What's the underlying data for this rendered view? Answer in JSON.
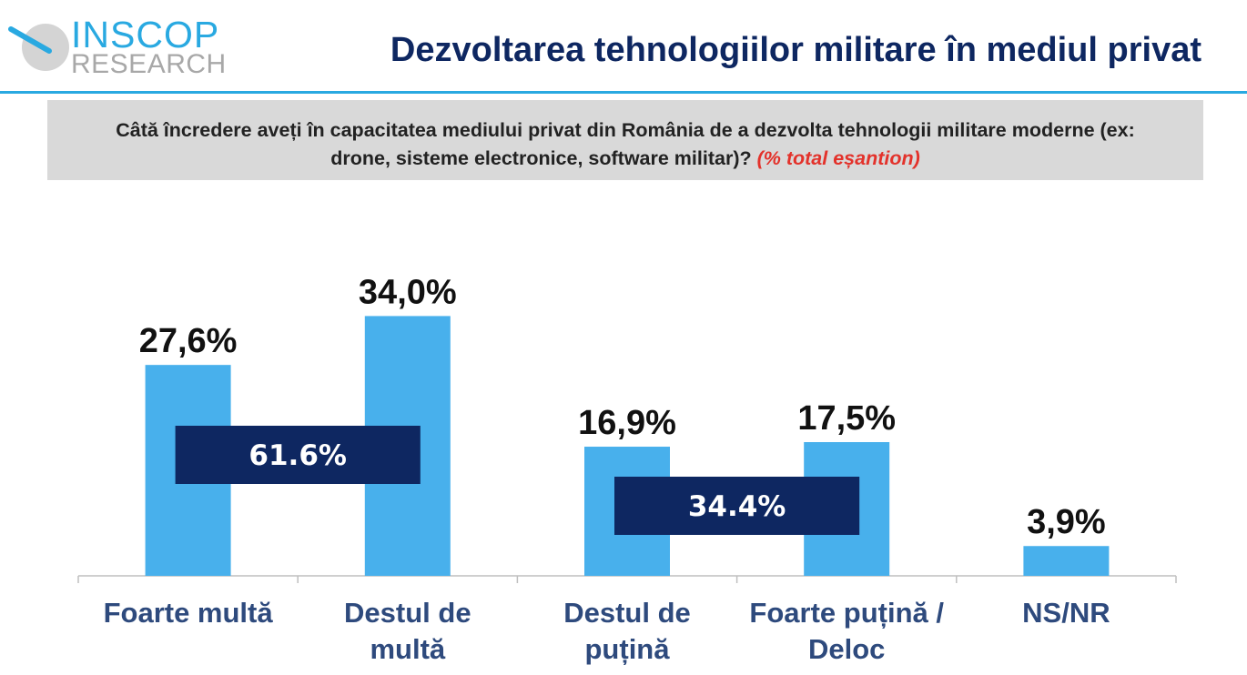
{
  "brand": {
    "name_top": "INSCOP",
    "name_bottom": "RESEARCH",
    "logo_icon": "magnifier-icon",
    "accent_color": "#29a9e1",
    "navy_color": "#0e2761"
  },
  "title": "Dezvoltarea tehnologiilor militare în mediul privat",
  "question": {
    "text": "Câtă încredere aveți în capacitatea mediului privat din România de a dezvolta tehnologii militare moderne (ex: drone, sisteme electronice, software militar)?",
    "note": "(% total eșantion)"
  },
  "chart_data": {
    "type": "bar",
    "categories": [
      [
        "Foarte multă"
      ],
      [
        "Destul de",
        "multă"
      ],
      [
        "Destul de",
        "puțină"
      ],
      [
        "Foarte puțină /",
        "Deloc"
      ],
      [
        "NS/NR"
      ]
    ],
    "values": [
      27.6,
      34.0,
      16.9,
      17.5,
      3.9
    ],
    "value_labels": [
      "27,6%",
      "34,0%",
      "16,9%",
      "17,5%",
      "3,9%"
    ],
    "ylim": [
      0,
      40
    ],
    "bar_color": "#48b0ec",
    "aggregates": [
      {
        "label": "61.6%",
        "categories": [
          0,
          1
        ],
        "value": 61.6
      },
      {
        "label": "34.4%",
        "categories": [
          2,
          3
        ],
        "value": 34.4
      }
    ],
    "aggregate_color": "#0e2761"
  }
}
